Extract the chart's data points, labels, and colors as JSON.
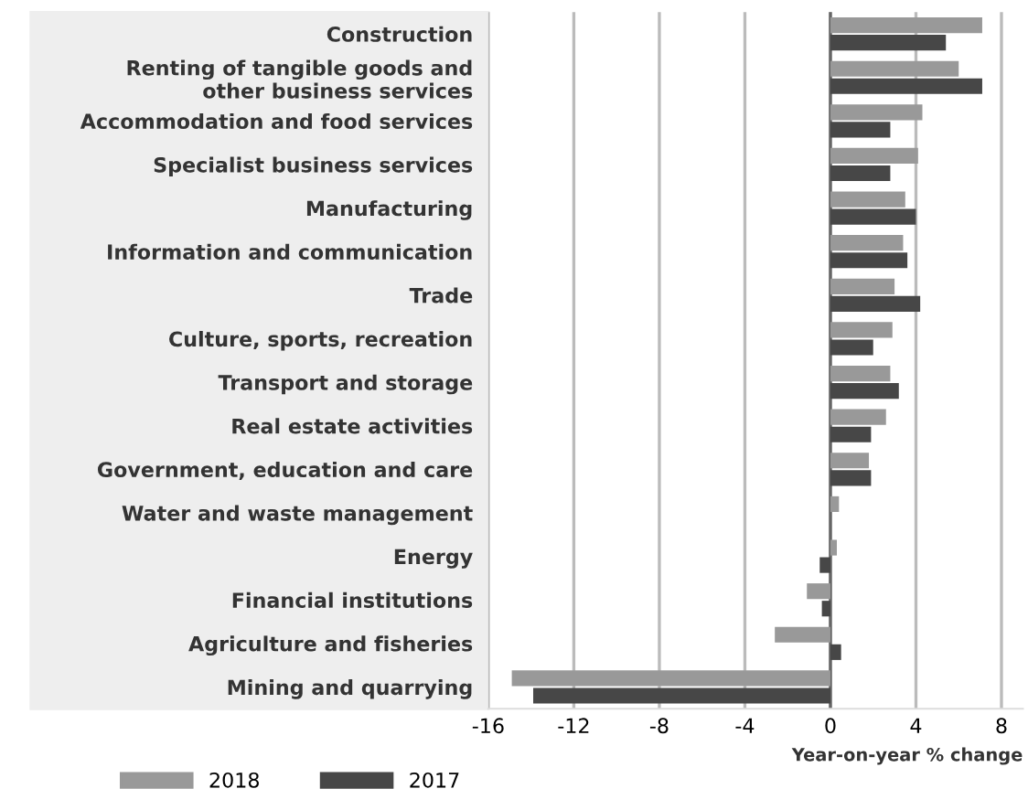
{
  "chart_data": {
    "type": "bar",
    "orientation": "horizontal",
    "categories": [
      "Construction",
      "Renting of tangible goods and\nother business services",
      "Accommodation and food services",
      "Specialist business services",
      "Manufacturing",
      "Information and communication",
      "Trade",
      "Culture, sports, recreation",
      "Transport and storage",
      "Real estate activities",
      "Government, education and care",
      "Water and waste management",
      "Energy",
      "Financial institutions",
      "Agriculture and fisheries",
      "Mining and quarrying"
    ],
    "series": [
      {
        "name": "2018",
        "color": "#999999",
        "values": [
          7.1,
          6.0,
          4.3,
          4.1,
          3.5,
          3.4,
          3.0,
          2.9,
          2.8,
          2.6,
          1.8,
          0.4,
          0.3,
          -1.1,
          -2.6,
          -14.9
        ]
      },
      {
        "name": "2017",
        "color": "#474747",
        "values": [
          5.4,
          7.1,
          2.8,
          2.8,
          4.0,
          3.6,
          4.2,
          2.0,
          3.2,
          1.9,
          1.9,
          null,
          -0.5,
          -0.4,
          0.5,
          -13.9
        ]
      }
    ],
    "xlim": [
      -16,
      9
    ],
    "xticks": [
      -16,
      -12,
      -8,
      -4,
      0,
      4,
      8
    ],
    "xlabel": "Year-on-year % change",
    "grid": "x",
    "legend": "bottom left",
    "ref_lines": [
      {
        "axis": "x",
        "value": 0,
        "color": "#666666"
      }
    ]
  }
}
